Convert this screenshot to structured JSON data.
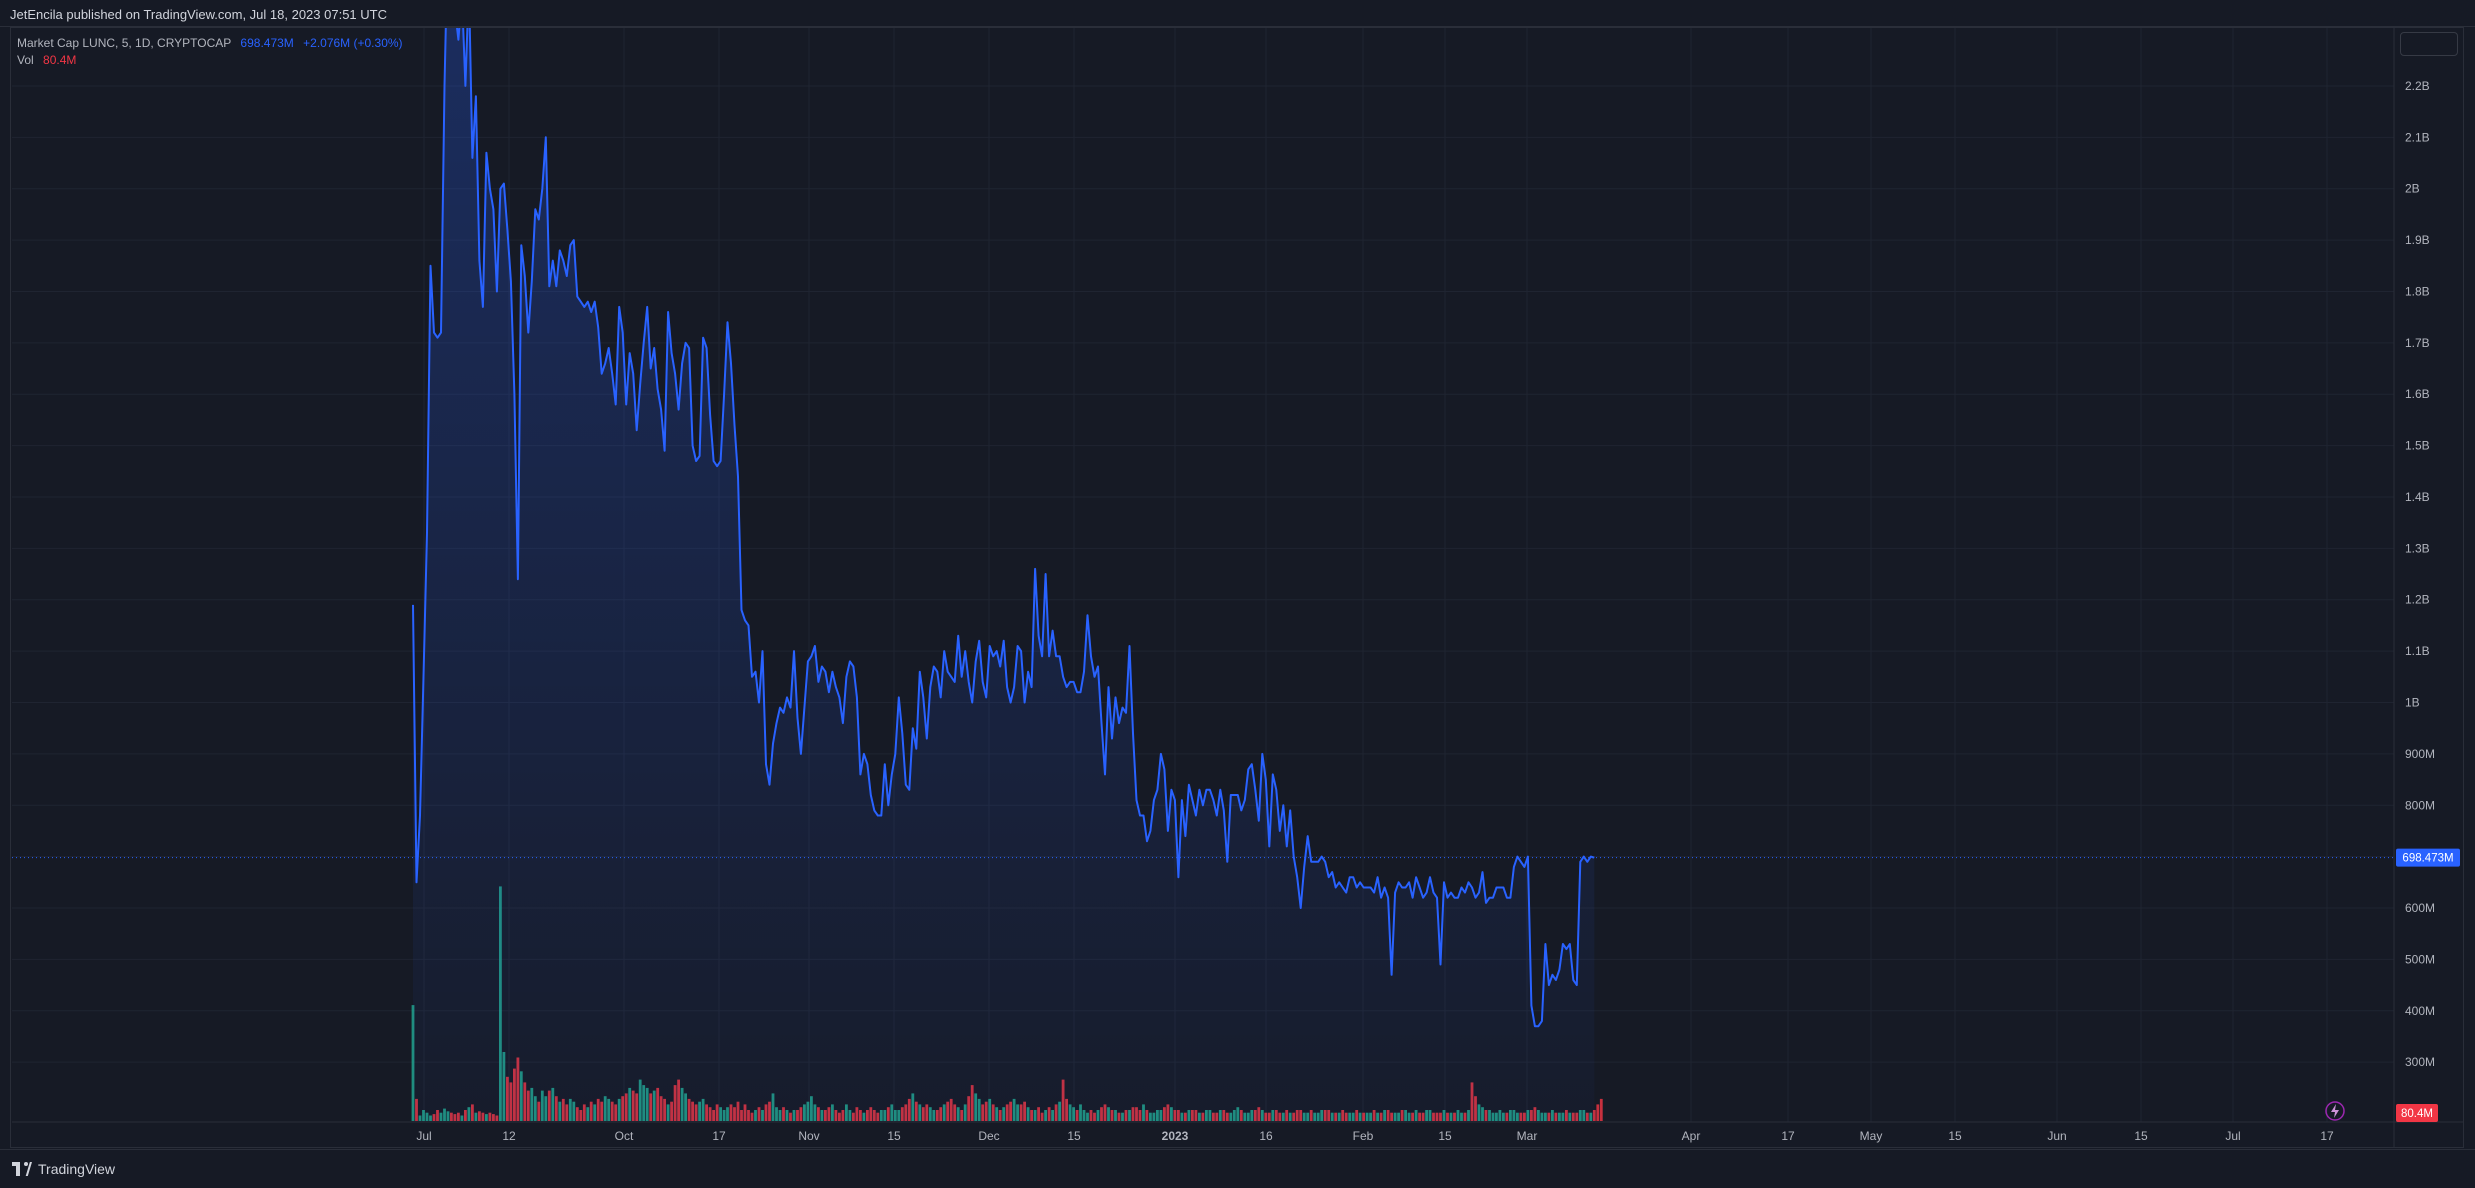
{
  "header": {
    "caption": "JetEncila published on TradingView.com, Jul 18, 2023 07:51 UTC"
  },
  "legend": {
    "symbol": "Market Cap LUNC, 5, 1D, CRYPTOCAP",
    "value": "698.473M",
    "change": "+2.076M (+0.30%)",
    "vol_label": "Vol",
    "vol_value": "80.4M"
  },
  "footer": {
    "brand": "TradingView"
  },
  "colors": {
    "background": "#161a25",
    "grid": "#1f2431",
    "line": "#2962ff",
    "up_volume": "#22ab94",
    "down_volume": "#f23645",
    "text": "#b2b5be"
  },
  "chart_data": {
    "type": "area",
    "title": "Market Cap LUNC, 5, 1D, CRYPTOCAP",
    "y_axis": {
      "position": "right",
      "ticks": [
        "300M",
        "400M",
        "500M",
        "600M",
        "700M",
        "800M",
        "900M",
        "1B",
        "1.1B",
        "1.2B",
        "1.3B",
        "1.4B",
        "1.5B",
        "1.6B",
        "1.7B",
        "1.8B",
        "1.9B",
        "2B",
        "2.1B",
        "2.2B"
      ],
      "range_millions": [
        170,
        2300
      ]
    },
    "x_axis": {
      "ticks": [
        "Jul",
        "12",
        "Oct",
        "17",
        "Nov",
        "15",
        "Dec",
        "15",
        "2023",
        "16",
        "Feb",
        "15",
        "Mar",
        "Apr",
        "17",
        "May",
        "15",
        "Jun",
        "15",
        "Jul",
        "17"
      ]
    },
    "last_value_label": "698.473M",
    "last_volume_label": "80.4M",
    "grid": true,
    "series": [
      {
        "name": "Market Cap LUNC",
        "unit": "millions USD",
        "values": [
          1190,
          650,
          780,
          1050,
          1330,
          1850,
          1720,
          1710,
          1720,
          2200,
          2500,
          2400,
          2350,
          2290,
          2380,
          2200,
          2400,
          2060,
          2180,
          1860,
          1770,
          2070,
          2000,
          1960,
          1800,
          2000,
          2010,
          1920,
          1820,
          1600,
          1240,
          1890,
          1830,
          1720,
          1820,
          1960,
          1940,
          2000,
          2100,
          1810,
          1860,
          1810,
          1880,
          1860,
          1830,
          1890,
          1900,
          1790,
          1780,
          1770,
          1780,
          1760,
          1780,
          1730,
          1640,
          1660,
          1690,
          1640,
          1580,
          1770,
          1720,
          1580,
          1680,
          1640,
          1530,
          1620,
          1700,
          1770,
          1650,
          1690,
          1610,
          1570,
          1490,
          1760,
          1680,
          1640,
          1570,
          1660,
          1700,
          1690,
          1500,
          1470,
          1480,
          1710,
          1690,
          1560,
          1470,
          1460,
          1470,
          1600,
          1740,
          1660,
          1540,
          1440,
          1180,
          1160,
          1150,
          1050,
          1060,
          1000,
          1100,
          880,
          840,
          920,
          960,
          990,
          980,
          1010,
          990,
          1100,
          970,
          900,
          990,
          1080,
          1090,
          1110,
          1040,
          1070,
          1060,
          1020,
          1060,
          1030,
          1010,
          960,
          1050,
          1080,
          1070,
          1010,
          860,
          900,
          880,
          820,
          790,
          780,
          780,
          880,
          800,
          860,
          900,
          1010,
          940,
          840,
          830,
          950,
          910,
          1060,
          1010,
          930,
          1030,
          1070,
          1060,
          1010,
          1100,
          1060,
          1050,
          1040,
          1130,
          1050,
          1100,
          1040,
          1000,
          1080,
          1120,
          1040,
          1010,
          1110,
          1090,
          1100,
          1070,
          1120,
          1030,
          1000,
          1030,
          1110,
          1100,
          1000,
          1060,
          1030,
          1260,
          1130,
          1090,
          1250,
          1090,
          1140,
          1090,
          1090,
          1050,
          1030,
          1040,
          1040,
          1020,
          1020,
          1060,
          1170,
          1090,
          1050,
          1070,
          960,
          860,
          1030,
          930,
          1010,
          960,
          990,
          980,
          1110,
          940,
          810,
          780,
          780,
          730,
          750,
          810,
          830,
          900,
          870,
          750,
          830,
          810,
          660,
          810,
          740,
          840,
          810,
          780,
          830,
          800,
          830,
          830,
          810,
          780,
          830,
          790,
          690,
          820,
          820,
          820,
          790,
          810,
          870,
          880,
          830,
          770,
          900,
          850,
          720,
          860,
          830,
          750,
          800,
          720,
          790,
          700,
          660,
          600,
          680,
          740,
          690,
          690,
          690,
          700,
          690,
          660,
          670,
          640,
          650,
          640,
          630,
          660,
          660,
          640,
          650,
          640,
          640,
          640,
          630,
          660,
          620,
          640,
          620,
          470,
          630,
          650,
          640,
          640,
          650,
          620,
          660,
          640,
          620,
          630,
          660,
          630,
          620,
          490,
          650,
          620,
          630,
          620,
          620,
          640,
          630,
          650,
          640,
          620,
          630,
          670,
          610,
          620,
          620,
          640,
          640,
          640,
          620,
          620,
          680,
          700,
          690,
          680,
          700,
          410,
          370,
          370,
          380,
          530,
          450,
          470,
          460,
          480,
          530,
          520,
          530,
          460,
          450,
          690,
          700,
          690,
          700,
          698
        ]
      },
      {
        "name": "Vol",
        "unit": "millions USD",
        "values": [
          420,
          80,
          20,
          40,
          30,
          20,
          25,
          40,
          30,
          45,
          35,
          30,
          25,
          30,
          20,
          40,
          50,
          60,
          30,
          35,
          30,
          25,
          30,
          25,
          20,
          850,
          250,
          160,
          140,
          190,
          230,
          180,
          140,
          110,
          120,
          90,
          70,
          110,
          90,
          110,
          120,
          90,
          70,
          80,
          60,
          80,
          70,
          50,
          40,
          60,
          50,
          70,
          60,
          80,
          70,
          90,
          80,
          70,
          60,
          80,
          90,
          100,
          120,
          110,
          100,
          150,
          130,
          120,
          100,
          110,
          120,
          90,
          80,
          60,
          70,
          130,
          150,
          120,
          100,
          80,
          70,
          60,
          70,
          80,
          60,
          50,
          40,
          60,
          50,
          40,
          50,
          60,
          50,
          70,
          40,
          60,
          40,
          30,
          40,
          50,
          40,
          60,
          70,
          100,
          50,
          40,
          50,
          40,
          30,
          40,
          40,
          50,
          60,
          70,
          90,
          60,
          50,
          40,
          40,
          50,
          60,
          40,
          30,
          40,
          60,
          40,
          30,
          50,
          40,
          30,
          40,
          50,
          40,
          30,
          40,
          40,
          50,
          60,
          40,
          40,
          50,
          60,
          80,
          100,
          70,
          60,
          50,
          60,
          50,
          40,
          40,
          50,
          60,
          70,
          80,
          60,
          50,
          40,
          60,
          90,
          130,
          100,
          80,
          60,
          70,
          80,
          60,
          50,
          40,
          50,
          60,
          70,
          80,
          60,
          60,
          70,
          50,
          40,
          40,
          50,
          30,
          40,
          50,
          40,
          60,
          70,
          150,
          80,
          60,
          50,
          40,
          60,
          40,
          30,
          40,
          30,
          40,
          50,
          60,
          50,
          40,
          40,
          30,
          30,
          40,
          40,
          50,
          50,
          40,
          60,
          40,
          30,
          30,
          40,
          40,
          50,
          60,
          50,
          40,
          40,
          30,
          30,
          40,
          40,
          40,
          30,
          30,
          40,
          40,
          30,
          30,
          40,
          40,
          30,
          30,
          40,
          50,
          40,
          30,
          30,
          40,
          40,
          50,
          40,
          30,
          30,
          40,
          40,
          30,
          30,
          40,
          30,
          30,
          40,
          40,
          30,
          30,
          40,
          30,
          30,
          40,
          40,
          40,
          30,
          30,
          30,
          40,
          30,
          30,
          30,
          40,
          30,
          30,
          30,
          30,
          40,
          30,
          30,
          40,
          40,
          30,
          30,
          30,
          40,
          40,
          30,
          30,
          40,
          30,
          30,
          40,
          40,
          30,
          30,
          30,
          40,
          30,
          30,
          30,
          40,
          30,
          30,
          40,
          140,
          90,
          60,
          50,
          40,
          40,
          30,
          30,
          40,
          30,
          30,
          40,
          40,
          30,
          30,
          30,
          40,
          40,
          50,
          40,
          30,
          30,
          30,
          40,
          30,
          30,
          30,
          40,
          30,
          30,
          30,
          40,
          40,
          30,
          30,
          40,
          60,
          80
        ]
      }
    ]
  }
}
